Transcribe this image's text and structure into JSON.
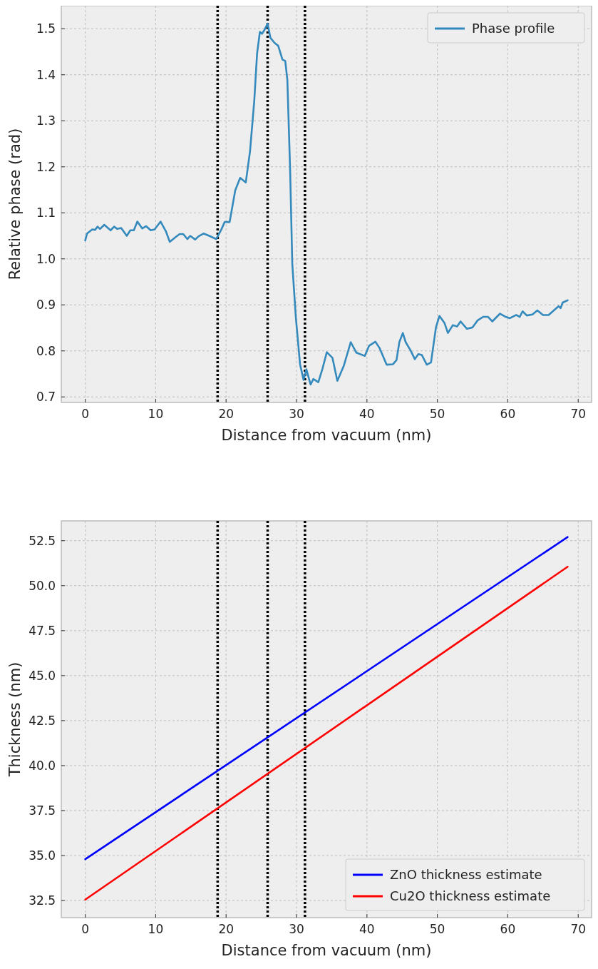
{
  "chart_data": [
    {
      "type": "line",
      "xlabel": "Distance from vacuum (nm)",
      "ylabel": "Relative phase (rad)",
      "xlim": [
        -3.4,
        71.9
      ],
      "ylim": [
        0.688,
        1.55
      ],
      "xticks": [
        0,
        10,
        20,
        30,
        40,
        50,
        60,
        70
      ],
      "yticks": [
        0.7,
        0.8,
        0.9,
        {
          "value": 1,
          "label": "1.0"
        },
        1.1,
        1.2,
        1.3,
        1.4,
        1.5
      ],
      "grid": true,
      "legend": "top right",
      "line_style": "solid",
      "marker": "none",
      "ref_lines": [
        {
          "axis": "x",
          "value": 18.8,
          "color": "#000000",
          "line_style": "dotted"
        },
        {
          "axis": "x",
          "value": 25.9,
          "color": "#000000",
          "line_style": "dotted"
        },
        {
          "axis": "x",
          "value": 31.2,
          "color": "#000000",
          "line_style": "dotted"
        }
      ],
      "series": [
        {
          "name": "Phase profile",
          "color": "#348abd",
          "x": [
            0,
            0.26,
            1.0,
            1.4,
            1.75,
            2.1,
            2.7,
            3.6,
            4.1,
            4.55,
            5.1,
            5.9,
            6.4,
            6.9,
            7.4,
            8.1,
            8.65,
            9.3,
            9.85,
            10.7,
            11.45,
            12.0,
            12.8,
            13.4,
            13.9,
            14.5,
            14.9,
            15.6,
            16.1,
            16.8,
            17.6,
            18.6,
            19.3,
            19.8,
            20.5,
            21.3,
            22.0,
            22.8,
            23.4,
            24.0,
            24.4,
            24.8,
            25.1,
            25.4,
            25.9,
            26.3,
            26.9,
            27.4,
            28.0,
            28.4,
            28.7,
            29.1,
            29.4,
            29.9,
            30.5,
            31.0,
            31.4,
            32.0,
            32.4,
            33.1,
            33.7,
            34.3,
            35.1,
            35.8,
            36.7,
            37.7,
            38.5,
            39.7,
            40.3,
            41.2,
            41.8,
            42.8,
            43.7,
            44.2,
            44.6,
            45.1,
            45.5,
            46.2,
            46.8,
            47.3,
            47.8,
            48.5,
            49.1,
            49.8,
            50.3,
            51.0,
            51.5,
            52.2,
            52.8,
            53.3,
            54.2,
            55.0,
            55.7,
            56.5,
            57.2,
            57.8,
            58.9,
            59.7,
            60.3,
            61.2,
            61.7,
            62.1,
            62.7,
            63.5,
            64.2,
            65.0,
            65.8,
            67.2,
            67.5,
            67.8,
            68.5
          ],
          "values": [
            1.04,
            1.055,
            1.064,
            1.063,
            1.07,
            1.065,
            1.074,
            1.062,
            1.07,
            1.065,
            1.067,
            1.05,
            1.062,
            1.062,
            1.081,
            1.066,
            1.071,
            1.062,
            1.064,
            1.081,
            1.06,
            1.037,
            1.047,
            1.054,
            1.054,
            1.043,
            1.05,
            1.042,
            1.049,
            1.055,
            1.05,
            1.043,
            1.063,
            1.08,
            1.08,
            1.149,
            1.176,
            1.166,
            1.234,
            1.343,
            1.446,
            1.493,
            1.489,
            1.496,
            1.511,
            1.48,
            1.469,
            1.463,
            1.433,
            1.43,
            1.389,
            1.189,
            0.989,
            0.874,
            0.771,
            0.737,
            0.76,
            0.727,
            0.739,
            0.732,
            0.762,
            0.797,
            0.785,
            0.735,
            0.767,
            0.819,
            0.796,
            0.789,
            0.811,
            0.82,
            0.806,
            0.77,
            0.771,
            0.78,
            0.819,
            0.839,
            0.819,
            0.801,
            0.782,
            0.793,
            0.791,
            0.77,
            0.775,
            0.851,
            0.876,
            0.861,
            0.839,
            0.856,
            0.853,
            0.864,
            0.848,
            0.851,
            0.866,
            0.874,
            0.874,
            0.864,
            0.881,
            0.874,
            0.871,
            0.878,
            0.874,
            0.886,
            0.877,
            0.879,
            0.888,
            0.878,
            0.878,
            0.897,
            0.893,
            0.905,
            0.91
          ]
        }
      ]
    },
    {
      "type": "line",
      "xlabel": "Distance from vacuum (nm)",
      "ylabel": "Thickness (nm)",
      "xlim": [
        -3.4,
        71.9
      ],
      "ylim": [
        31.55,
        53.6
      ],
      "xticks": [
        0,
        10,
        20,
        30,
        40,
        50,
        60,
        70
      ],
      "yticks": [
        32.5,
        {
          "value": 35,
          "label": "35.0"
        },
        37.5,
        {
          "value": 40,
          "label": "40.0"
        },
        42.5,
        {
          "value": 45,
          "label": "45.0"
        },
        47.5,
        {
          "value": 50,
          "label": "50.0"
        },
        52.5
      ],
      "grid": true,
      "legend": "bottom right",
      "line_style": "solid",
      "marker": "none",
      "ref_lines": [
        {
          "axis": "x",
          "value": 18.8,
          "color": "#000000",
          "line_style": "dotted"
        },
        {
          "axis": "x",
          "value": 25.9,
          "color": "#000000",
          "line_style": "dotted"
        },
        {
          "axis": "x",
          "value": 31.2,
          "color": "#000000",
          "line_style": "dotted"
        }
      ],
      "series": [
        {
          "name": "ZnO thickness estimate",
          "color": "#0000ff",
          "x": [
            0,
            68.5
          ],
          "values": [
            34.8,
            52.7
          ]
        },
        {
          "name": "Cu2O thickness estimate",
          "color": "#ff0000",
          "x": [
            0,
            68.5
          ],
          "values": [
            32.55,
            51.05
          ]
        }
      ]
    }
  ]
}
